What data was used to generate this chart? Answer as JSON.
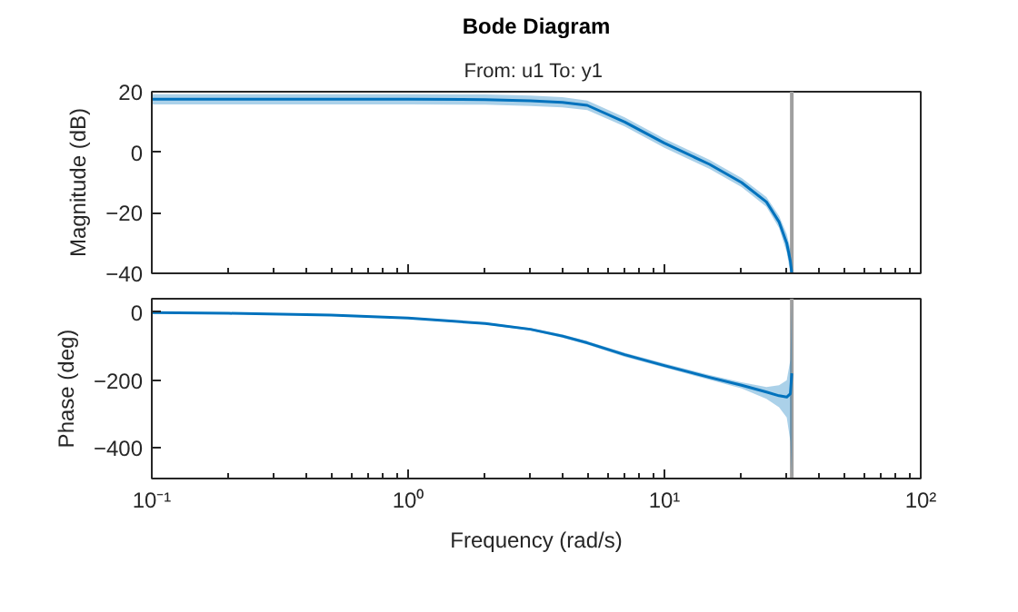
{
  "chart_data": [
    {
      "type": "line",
      "title": "Bode Diagram",
      "subtitle": "From: u1  To: y1",
      "ylabel": "Magnitude (dB)",
      "x": [
        0.1,
        0.2,
        0.5,
        1,
        2,
        3,
        4,
        5,
        7,
        10,
        15,
        20,
        25,
        28,
        30,
        31,
        31.4
      ],
      "series": [
        {
          "color": "#0072bd",
          "values": [
            17.5,
            17.5,
            17.5,
            17.5,
            17.4,
            17,
            16.5,
            15.5,
            10,
            3,
            -4,
            -10,
            -16.4,
            -23,
            -30,
            -36,
            -40
          ],
          "lower": [
            15.8,
            15.8,
            15.8,
            15.8,
            15.7,
            15.3,
            14.8,
            13.9,
            8.5,
            1.5,
            -5.5,
            -11.5,
            -18,
            -25,
            -33,
            -40,
            -40
          ],
          "upper": [
            19.2,
            19.2,
            19.2,
            19.2,
            19.1,
            18.7,
            18.2,
            17.1,
            11.5,
            4.5,
            -2.5,
            -8.5,
            -14.8,
            -21,
            -27,
            -32,
            -40
          ]
        }
      ],
      "xlim": [
        0.1,
        100
      ],
      "ylim": [
        -40,
        20
      ],
      "xticks": [
        {
          "value": 0.1,
          "label": null
        },
        {
          "value": 1,
          "label": null
        },
        {
          "value": 10,
          "label": null
        },
        {
          "value": 100,
          "label": null
        }
      ],
      "yticks": [
        -40,
        -20,
        0,
        20
      ],
      "log": "x",
      "tick_labels": "y",
      "ref_lines": [
        {
          "axis": "x",
          "value": 31.4,
          "color": "#a0a0a0"
        }
      ]
    },
    {
      "type": "line",
      "xlabel": "Frequency (rad/s)",
      "ylabel": "Phase (deg)",
      "x": [
        0.1,
        0.2,
        0.5,
        1,
        2,
        3,
        4,
        5,
        7,
        10,
        15,
        20,
        25,
        28,
        30,
        31,
        31.4
      ],
      "series": [
        {
          "color": "#0072bd",
          "values": [
            -1,
            -3,
            -8,
            -17,
            -33,
            -50,
            -70,
            -90,
            -125,
            -157,
            -192,
            -215,
            -235,
            -246,
            -250,
            -240,
            -180
          ],
          "lower": [
            -3,
            -5,
            -10,
            -19,
            -36,
            -54,
            -75,
            -95,
            -131,
            -163,
            -199,
            -224,
            -255,
            -280,
            -310,
            -380,
            -480
          ],
          "upper": [
            1,
            -1,
            -6,
            -15,
            -30,
            -46,
            -65,
            -85,
            -119,
            -151,
            -185,
            -206,
            -220,
            -215,
            -200,
            -140,
            30
          ]
        }
      ],
      "xlim": [
        0.1,
        100
      ],
      "ylim": [
        -490,
        40
      ],
      "xticks": [
        {
          "value": 0.1,
          "label": "10⁻¹"
        },
        {
          "value": 1,
          "label": "10⁰"
        },
        {
          "value": 10,
          "label": "10¹"
        },
        {
          "value": 100,
          "label": "10²"
        }
      ],
      "yticks": [
        -400,
        -200,
        0
      ],
      "log": "x",
      "ref_lines": [
        {
          "axis": "x",
          "value": 31.4,
          "color": "#a0a0a0"
        }
      ]
    }
  ]
}
